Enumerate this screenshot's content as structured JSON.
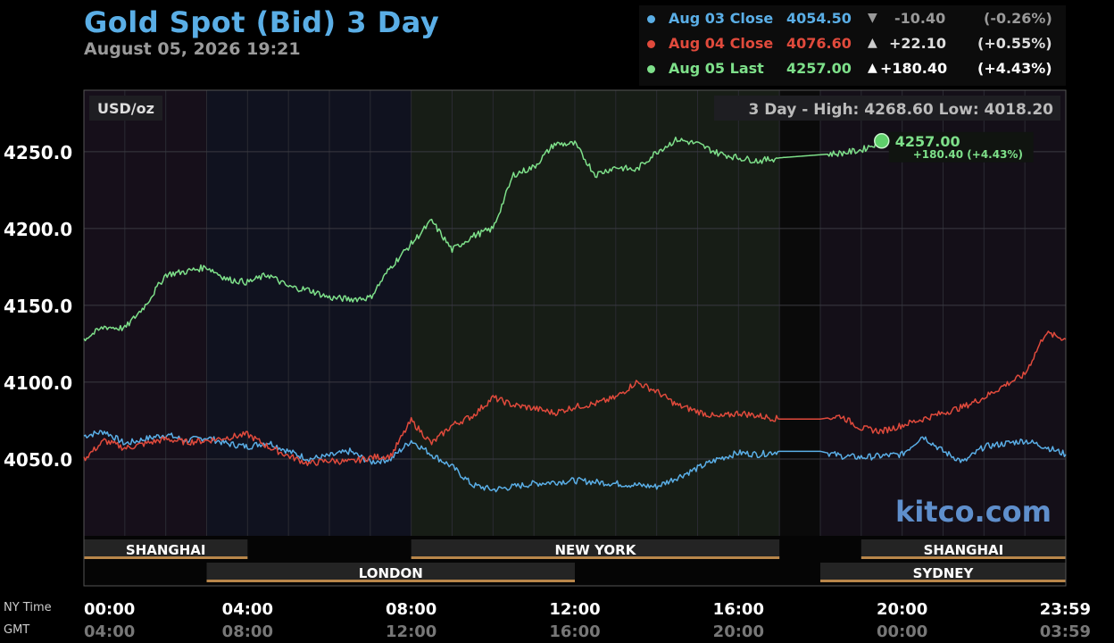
{
  "header": {
    "title": "Gold Spot (Bid) 3 Day",
    "timestamp": "August 05, 2026 19:21"
  },
  "legend": [
    {
      "label": "Aug 03 Close",
      "value": "4054.50",
      "arrow": "▼",
      "change": "-10.40",
      "pct": "(-0.26%)",
      "color": "#5aaee6"
    },
    {
      "label": "Aug 04 Close",
      "value": "4076.60",
      "arrow": "▲",
      "change": "+22.10",
      "pct": "(+0.55%)",
      "color": "#e04a3c"
    },
    {
      "label": "Aug 05 Last",
      "value": "4257.00",
      "arrow": "▲",
      "change": "+180.40",
      "pct": "(+4.43%)",
      "color": "#7ee08a"
    }
  ],
  "chart_info": {
    "unit": "USD/oz",
    "range_text": "3 Day - High: 4268.60   Low: 4018.20",
    "last_value": "4257.00",
    "last_change": "+180.40 (+4.43%)",
    "watermark": "kitco.com",
    "ny_time_label": "NY Time",
    "gmt_label": "GMT"
  },
  "colors": {
    "aug03": "#5aaee6",
    "aug04": "#e04a3c",
    "aug05": "#7ee08a",
    "session_bar": "#b8864a"
  },
  "sessions": [
    {
      "name": "SHANGHAI",
      "start": 0,
      "end": 4,
      "row": 0
    },
    {
      "name": "NEW YORK",
      "start": 8,
      "end": 17,
      "row": 0
    },
    {
      "name": "SHANGHAI",
      "start": 19,
      "end": 24,
      "row": 0
    },
    {
      "name": "LONDON",
      "start": 3,
      "end": 12,
      "row": 1
    },
    {
      "name": "SYDNEY",
      "start": 18,
      "end": 24,
      "row": 1
    }
  ],
  "chart_data": {
    "type": "line",
    "title": "Gold Spot (Bid) 3 Day",
    "ylabel": "USD/oz",
    "ylim": [
      4000,
      4290
    ],
    "xlim": [
      0,
      24
    ],
    "yticks": [
      4050.0,
      4100.0,
      4150.0,
      4200.0,
      4250.0
    ],
    "ytick_labels": [
      "4050.0",
      "4100.0",
      "4150.0",
      "4200.0",
      "4250.0"
    ],
    "xticks": [
      0,
      4,
      8,
      12,
      16,
      20,
      24
    ],
    "xtick_labels_ny": [
      "00:00",
      "04:00",
      "08:00",
      "12:00",
      "16:00",
      "20:00",
      "23:59"
    ],
    "xtick_labels_gmt": [
      "04:00",
      "08:00",
      "12:00",
      "16:00",
      "20:00",
      "00:00",
      "03:59"
    ],
    "series": [
      {
        "name": "Aug 03 Close",
        "color": "#5aaee6",
        "x": [
          0,
          0.5,
          1,
          1.5,
          2,
          2.5,
          3,
          3.5,
          4,
          4.5,
          5,
          5.5,
          6,
          6.5,
          7,
          7.5,
          8,
          8.5,
          9,
          9.5,
          10,
          10.5,
          11,
          11.5,
          12,
          12.5,
          13,
          13.5,
          14,
          14.5,
          15,
          15.5,
          16,
          16.5,
          17,
          17.5,
          18,
          18.5,
          19,
          19.5,
          20,
          20.5,
          21,
          21.5,
          22,
          22.5,
          23,
          23.5,
          24
        ],
        "y": [
          4065,
          4068,
          4060,
          4063,
          4066,
          4062,
          4064,
          4060,
          4058,
          4061,
          4055,
          4050,
          4052,
          4055,
          4048,
          4050,
          4062,
          4053,
          4045,
          4033,
          4030,
          4032,
          4034,
          4035,
          4036,
          4035,
          4034,
          4033,
          4032,
          4038,
          4044,
          4050,
          4054,
          4053,
          4055,
          4055,
          4055,
          4052,
          4051,
          4052,
          4053,
          4065,
          4055,
          4048,
          4058,
          4060,
          4062,
          4058,
          4053
        ]
      },
      {
        "name": "Aug 04 Close",
        "color": "#e04a3c",
        "x": [
          0,
          0.5,
          1,
          1.5,
          2,
          2.5,
          3,
          3.5,
          4,
          4.5,
          5,
          5.5,
          6,
          6.5,
          7,
          7.5,
          8,
          8.5,
          9,
          9.5,
          10,
          10.5,
          11,
          11.5,
          12,
          12.5,
          13,
          13.5,
          14,
          14.5,
          15,
          15.5,
          16,
          16.5,
          17,
          17.5,
          18,
          18.5,
          19,
          19.5,
          20,
          20.5,
          21,
          21.5,
          22,
          22.5,
          23,
          23.5,
          24
        ],
        "y": [
          4050,
          4062,
          4057,
          4060,
          4063,
          4061,
          4062,
          4064,
          4066,
          4058,
          4052,
          4047,
          4049,
          4048,
          4051,
          4052,
          4075,
          4060,
          4072,
          4078,
          4090,
          4085,
          4083,
          4080,
          4084,
          4086,
          4090,
          4100,
          4094,
          4085,
          4081,
          4077,
          4080,
          4078,
          4076,
          4076,
          4076,
          4078,
          4070,
          4068,
          4072,
          4076,
          4080,
          4084,
          4090,
          4098,
          4105,
          4132,
          4128
        ]
      },
      {
        "name": "Aug 05 Last",
        "color": "#7ee08a",
        "x": [
          0,
          0.5,
          1,
          1.5,
          2,
          2.5,
          3,
          3.5,
          4,
          4.5,
          5,
          5.5,
          6,
          6.5,
          7,
          7.5,
          8,
          8.5,
          9,
          9.5,
          10,
          10.5,
          11,
          11.5,
          12,
          12.5,
          13,
          13.5,
          14,
          14.5,
          15,
          15.5,
          16,
          16.5,
          17,
          17.5,
          18,
          18.5,
          19,
          19.5,
          20
        ],
        "y": [
          4128,
          4136,
          4135,
          4150,
          4170,
          4172,
          4175,
          4167,
          4165,
          4170,
          4162,
          4160,
          4155,
          4154,
          4155,
          4175,
          4190,
          4205,
          4186,
          4195,
          4200,
          4235,
          4240,
          4255,
          4255,
          4235,
          4240,
          4238,
          4250,
          4258,
          4255,
          4249,
          4246,
          4244,
          4246,
          4247,
          4248,
          4249,
          4251,
          4257,
          null
        ]
      }
    ]
  }
}
